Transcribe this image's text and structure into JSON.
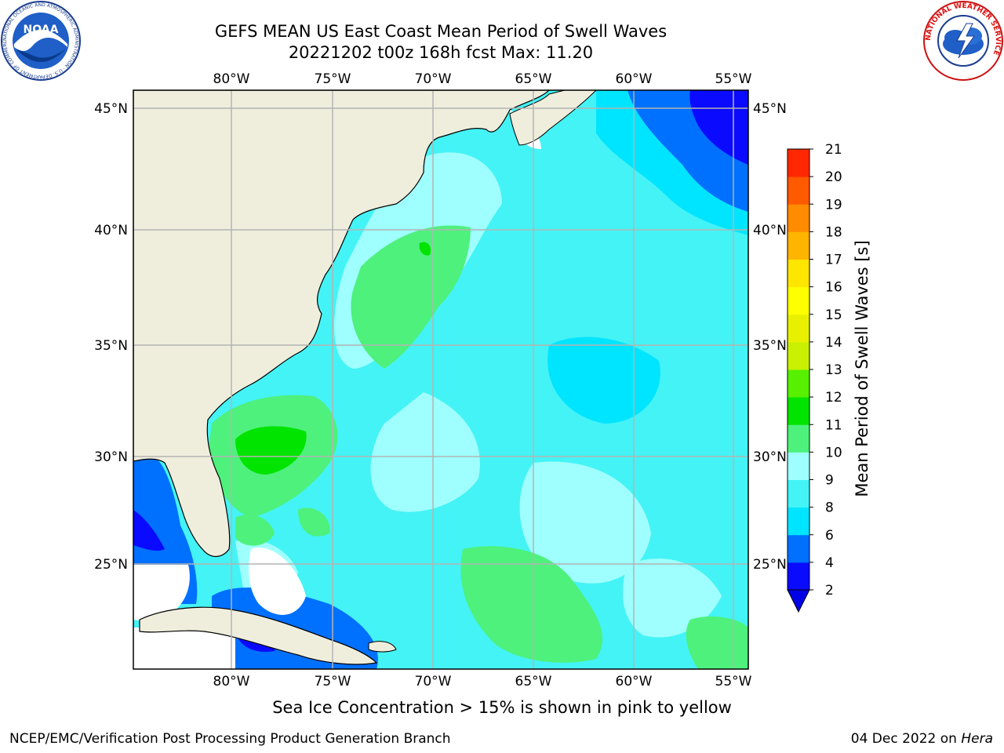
{
  "title": {
    "line1": "GEFS MEAN US East Coast Mean Period of Swell Waves",
    "line2": "20221202 t00z 168h fcst   Max: 11.20"
  },
  "map": {
    "lon_labels": [
      "80°W",
      "75°W",
      "70°W",
      "65°W",
      "60°W",
      "55°W"
    ],
    "lat_labels": [
      "45°N",
      "40°N",
      "35°N",
      "30°N",
      "25°N"
    ],
    "colors": {
      "land": "#efeedd",
      "ocean_base": "#44f3f5",
      "grid": "#b4b4b4",
      "coast": "#000000"
    }
  },
  "colorbar": {
    "label": "Mean Period of Swell Waves [s]",
    "ticks": [
      "2",
      "4",
      "6",
      "8",
      "9",
      "10",
      "11",
      "12",
      "13",
      "14",
      "15",
      "16",
      "17",
      "18",
      "19",
      "20",
      "21"
    ],
    "colors": [
      "#0a0aff",
      "#0070ff",
      "#00e5ff",
      "#44f3f5",
      "#9fffff",
      "#4ef17c",
      "#00e400",
      "#56f000",
      "#c8f000",
      "#e8f000",
      "#ffff00",
      "#ffe600",
      "#ffb400",
      "#ff8c00",
      "#ff5a00",
      "#ff2800"
    ],
    "under_color": "#0000e6"
  },
  "note": "Sea Ice Concentration > 15% is shown in pink to yellow",
  "footer": {
    "left": "NCEP/EMC/Verification Post Processing Product Generation Branch",
    "right_date": "04 Dec 2022 on ",
    "right_host": "Hera"
  },
  "logos": {
    "noaa_text": "NOAA",
    "noaa_ring": "NATIONAL OCEANIC AND ATMOSPHERIC ADMINISTRATION · U.S. DEPARTMENT OF COMMERCE",
    "nws_ring": "NATIONAL WEATHER SERVICE"
  }
}
